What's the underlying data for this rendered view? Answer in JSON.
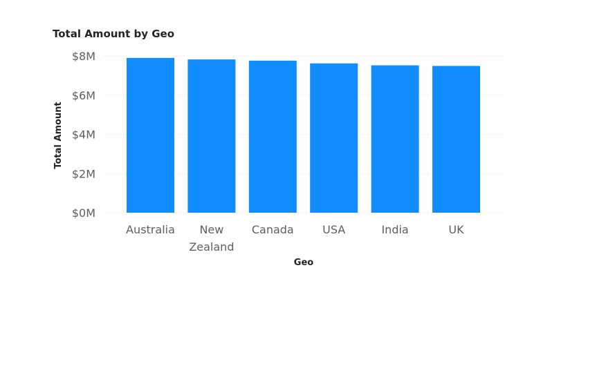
{
  "colors": {
    "bar": "#118dff",
    "gridline": "#e1dfdd",
    "tick_text": "#605e5c",
    "title_text": "#252423"
  },
  "chart_data": {
    "type": "bar",
    "title": "Total Amount by Geo",
    "xlabel": "Geo",
    "ylabel": "Total Amount",
    "categories": [
      "Australia",
      "New Zealand",
      "Canada",
      "USA",
      "India",
      "UK"
    ],
    "values": [
      7.9,
      7.82,
      7.76,
      7.62,
      7.52,
      7.49
    ],
    "value_unit": "$M",
    "ylim": [
      0,
      8
    ],
    "yticks": [
      0,
      2,
      4,
      6,
      8
    ],
    "ytick_labels": [
      "$0M",
      "$2M",
      "$4M",
      "$6M",
      "$8M"
    ],
    "grid": true,
    "legend": "none"
  }
}
